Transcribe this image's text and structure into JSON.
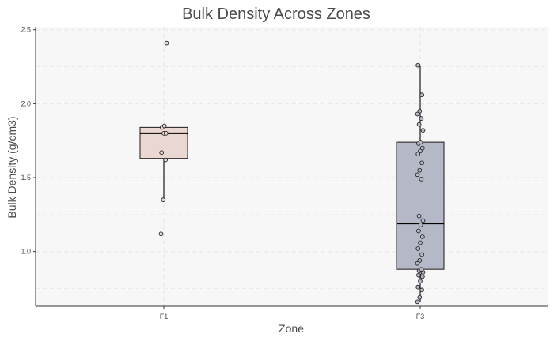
{
  "chart_data": {
    "type": "box",
    "title": "Bulk Density Across Zones",
    "xlabel": "Zone",
    "ylabel": "Bulk Density (g/cm3)",
    "ylim": [
      0.63,
      2.52
    ],
    "yticks": [
      "1.0",
      "1.5",
      "2.0",
      "2.5"
    ],
    "ytick_values": [
      1.0,
      1.5,
      2.0,
      2.5
    ],
    "minor_gridlines": [
      0.75,
      1.25,
      1.75,
      2.25
    ],
    "grid": true,
    "legend": "none",
    "categories": [
      "F1",
      "F3"
    ],
    "boxes": [
      {
        "category": "F1",
        "fill": "#ead7d1",
        "q1": 1.63,
        "median": 1.8,
        "q3": 1.84,
        "whisker_low": 1.35,
        "whisker_high": 1.85,
        "outliers": [
          1.12,
          2.41
        ],
        "points": [
          1.12,
          1.35,
          1.62,
          1.67,
          1.8,
          1.8,
          1.84,
          1.85,
          2.41
        ]
      },
      {
        "category": "F3",
        "fill": "#b5b9c7",
        "q1": 0.88,
        "median": 1.19,
        "q3": 1.74,
        "whisker_low": 0.66,
        "whisker_high": 2.26,
        "outliers": [],
        "points": [
          0.66,
          0.69,
          0.74,
          0.76,
          0.8,
          0.83,
          0.84,
          0.86,
          0.86,
          0.87,
          0.88,
          0.92,
          0.94,
          0.98,
          1.02,
          1.06,
          1.1,
          1.14,
          1.18,
          1.21,
          1.24,
          1.49,
          1.52,
          1.55,
          1.6,
          1.66,
          1.68,
          1.7,
          1.73,
          1.74,
          1.82,
          1.86,
          1.9,
          1.93,
          1.95,
          2.06,
          2.26
        ]
      }
    ]
  },
  "colors": {
    "panel_bg": "#f7f7f7",
    "grid": "#e6e6e6",
    "axis": "#333333",
    "text": "#4a4a4a",
    "box_stroke": "#1a1a1a"
  }
}
